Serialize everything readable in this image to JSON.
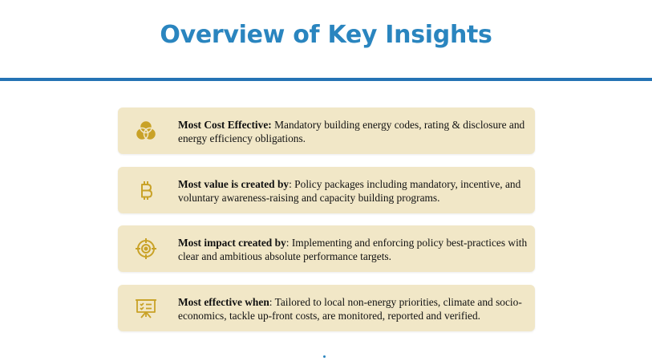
{
  "title": "Overview of Key Insights",
  "accent_color": "#2a85bf",
  "icon_color": "#c9a227",
  "insights": [
    {
      "icon": "venn-circles-icon",
      "label": "Most Cost Effective:",
      "text": " Mandatory building energy codes, rating & disclosure and energy efficiency obligations."
    },
    {
      "icon": "bitcoin-icon",
      "label": "Most value is created by",
      "text": ": Policy packages including mandatory, incentive, and voluntary awareness-raising and capacity building programs."
    },
    {
      "icon": "target-crosshair-icon",
      "label": "Most impact created by",
      "text": ": Implementing and enforcing policy best-practices with clear and ambitious absolute performance targets."
    },
    {
      "icon": "presentation-board-icon",
      "label": "Most effective when",
      "text": ": Tailored to local non-energy priorities, climate and socio-economics, tackle up-front costs, are monitored, reported and verified."
    }
  ]
}
